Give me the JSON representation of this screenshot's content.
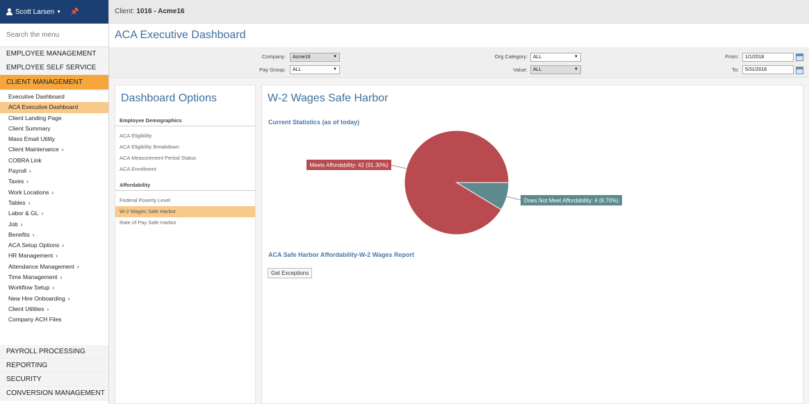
{
  "user": {
    "name": "Scott Larsen"
  },
  "menu_search": {
    "placeholder": "Search the menu"
  },
  "sections_top": [
    "EMPLOYEE MANAGEMENT",
    "EMPLOYEE SELF SERVICE"
  ],
  "active_section": "CLIENT MANAGEMENT",
  "submenu": [
    {
      "label": "Executive Dashboard",
      "arrow": false
    },
    {
      "label": "ACA Executive Dashboard",
      "arrow": false,
      "selected": true
    },
    {
      "label": "Client Landing Page",
      "arrow": false
    },
    {
      "label": "Client Summary",
      "arrow": false
    },
    {
      "label": "Mass Email Utility",
      "arrow": false
    },
    {
      "label": "Client Maintenance",
      "arrow": true
    },
    {
      "label": "COBRA Link",
      "arrow": false
    },
    {
      "label": "Payroll",
      "arrow": true
    },
    {
      "label": "Taxes",
      "arrow": true
    },
    {
      "label": "Work Locations",
      "arrow": true
    },
    {
      "label": "Tables",
      "arrow": true
    },
    {
      "label": "Labor & GL",
      "arrow": true
    },
    {
      "label": "Job",
      "arrow": true
    },
    {
      "label": "Benefits",
      "arrow": true
    },
    {
      "label": "ACA Setup Options",
      "arrow": true
    },
    {
      "label": "HR Management",
      "arrow": true
    },
    {
      "label": "Attendance Management",
      "arrow": true
    },
    {
      "label": "Time Management",
      "arrow": true
    },
    {
      "label": "Workflow Setup",
      "arrow": true
    },
    {
      "label": "New Hire Onboarding",
      "arrow": true
    },
    {
      "label": "Client Utilities",
      "arrow": true
    },
    {
      "label": "Company ACH Files",
      "arrow": false
    }
  ],
  "sections_bottom": [
    "PAYROLL PROCESSING",
    "REPORTING",
    "SECURITY",
    "CONVERSION MANAGEMENT"
  ],
  "topbar": {
    "label": "Client:",
    "client": "1016 - Acme16"
  },
  "page_title": "ACA Executive Dashboard",
  "filters": {
    "company_label": "Company:",
    "company_value": "Acme16",
    "paygroup_label": "Pay Group:",
    "paygroup_value": "ALL",
    "orgcat_label": "Org Category:",
    "orgcat_value": "ALL",
    "value_label": "Value:",
    "value_value": "ALL",
    "from_label": "From:",
    "from_value": "1/1/2018",
    "to_label": "To:",
    "to_value": "5/31/2018"
  },
  "options": {
    "title": "Dashboard Options",
    "groups": [
      {
        "heading": "Employee Demographics",
        "items": [
          "ACA Eligibility",
          "ACA Eligibility Breakdown",
          "ACA Measurement Period Status",
          "ACA Enrollment"
        ]
      },
      {
        "heading": "Affordability",
        "items": [
          "Federal Poverty Level",
          "W-2 Wages Safe Harbor",
          "Rate of Pay Safe Harbor"
        ]
      }
    ],
    "selected": "W-2 Wages Safe Harbor"
  },
  "main": {
    "title": "W-2 Wages Safe Harbor",
    "stats_title": "Current Statistics (as of today)",
    "report_title": "ACA Safe Harbor Affordability-W-2 Wages Report",
    "exceptions_button": "Get Exceptions"
  },
  "colors": {
    "meets": "#b84a50",
    "not_meets": "#5d8a8f",
    "accent": "#3f6f9e",
    "active_section": "#f5a63c"
  },
  "chart_data": {
    "type": "pie",
    "title": "",
    "slices": [
      {
        "label": "Meets Affordability: 42 (91.30%)",
        "value": 42,
        "percent": 91.3,
        "color": "#b84a50"
      },
      {
        "label": "Does Not Meet Affordability: 4 (8.70%)",
        "value": 4,
        "percent": 8.7,
        "color": "#5d8a8f"
      }
    ]
  }
}
